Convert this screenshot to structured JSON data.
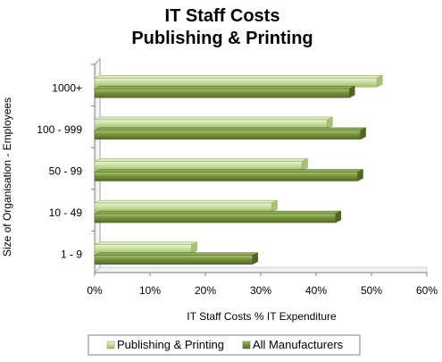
{
  "chart_data": {
    "type": "bar",
    "orientation": "horizontal",
    "title": "IT Staff Costs",
    "subtitle": "Publishing & Printing",
    "xlabel": "IT Staff Costs % IT Expenditure",
    "ylabel": "Size of Organisation - Employees",
    "categories": [
      "1000+",
      "100 - 999",
      "50 - 99",
      "10 - 49",
      "1 - 9"
    ],
    "series": [
      {
        "name": "Publishing & Printing",
        "values": [
          51,
          42,
          37.5,
          32,
          17.5
        ],
        "color": "#c5dc9a"
      },
      {
        "name": "All Manufacturers",
        "values": [
          46,
          48,
          47.5,
          43.5,
          28.5
        ],
        "color": "#76923c"
      }
    ],
    "xlim": [
      0,
      60
    ],
    "xticks": [
      "0%",
      "10%",
      "20%",
      "30%",
      "40%",
      "50%",
      "60%"
    ],
    "grid": false,
    "legend": "bottom"
  }
}
